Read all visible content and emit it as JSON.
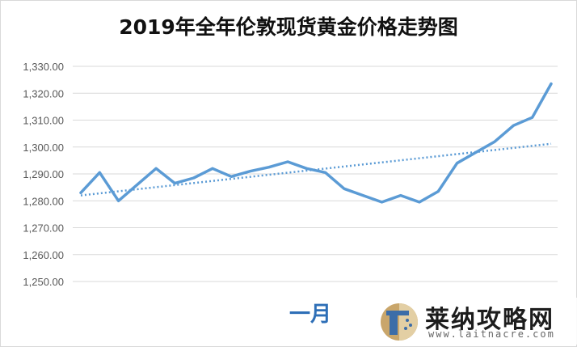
{
  "chart_data": {
    "type": "line",
    "title": "2019年全年伦敦现货黄金价格走势图",
    "xlabel": "一月",
    "ylabel": "",
    "ylim": [
      1250,
      1330
    ],
    "yticks": [
      "1,250.00",
      "1,260.00",
      "1,270.00",
      "1,280.00",
      "1,290.00",
      "1,300.00",
      "1,310.00",
      "1,320.00",
      "1,330.00"
    ],
    "ytick_values": [
      1250,
      1260,
      1270,
      1280,
      1290,
      1300,
      1310,
      1320,
      1330
    ],
    "grid": true,
    "legend": "none",
    "series": [
      {
        "values": [
          1283,
          1290.5,
          1280,
          1286,
          1292,
          1286.5,
          1288.5,
          1292,
          1289,
          1291,
          1292.5,
          1294.5,
          1292,
          1290.5,
          1284.5,
          1282,
          1279.5,
          1282,
          1279.5,
          1283.5,
          1294,
          1298,
          1302,
          1308,
          1311,
          1323.5
        ],
        "color": "#5b9bd5"
      },
      {
        "kind": "linear-trendline",
        "values": [
          1282,
          1301.2
        ],
        "color": "#5b9bd5"
      }
    ]
  },
  "watermark": {
    "name": "莱纳攻略网",
    "url": "www.laitnacre.com"
  }
}
